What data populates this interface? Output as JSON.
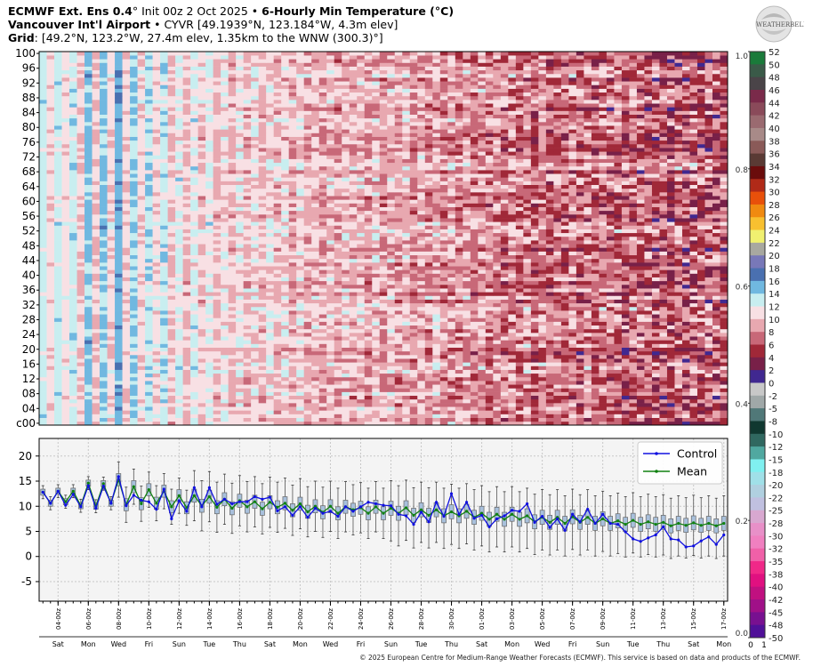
{
  "header": {
    "line1_bold_a": "ECMWF Ext. Ens 0.4",
    "line1_deg": "°",
    "line1_normal": " Init 00z 2 Oct 2025 • ",
    "line1_bold_b": "6-Hourly Min Temperature (°C)",
    "line2_bold": "Vancouver Int'l Airport",
    "line2_normal": " • CYVR [49.1939°N, 123.184°W, 4.3m elev]",
    "line3_bold": "Grid",
    "line3_normal": ": [49.2°N, 123.2°W, 27.4m elev, 1.35km to the WNW (300.3)°]"
  },
  "logo": {
    "text": "WEATHERBELL"
  },
  "footer": {
    "copyright": "© 2025 European Centre for Medium-Range Weather Forecasts (ECMWF). This service is based on data and products of the ECMWF."
  },
  "chart_data": [
    {
      "type": "heatmap",
      "title": "",
      "ylabel_ticks": [
        "c00",
        "04",
        "08",
        "12",
        "16",
        "20",
        "24",
        "28",
        "32",
        "36",
        "40",
        "44",
        "48",
        "52",
        "56",
        "60",
        "64",
        "68",
        "72",
        "76",
        "80",
        "84",
        "88",
        "92",
        "96",
        "100"
      ],
      "members": 101,
      "x_start": "2025-10-03 00z",
      "x_step_hours": 12,
      "colorbar": {
        "labels": [
          "52",
          "50",
          "48",
          "46",
          "44",
          "42",
          "40",
          "38",
          "36",
          "34",
          "32",
          "30",
          "28",
          "26",
          "24",
          "22",
          "20",
          "18",
          "16",
          "14",
          "12",
          "10",
          "8",
          "6",
          "4",
          "2",
          "0",
          "-2",
          "-5",
          "-8",
          "-10",
          "-12",
          "-15",
          "-18",
          "-20",
          "-22",
          "-25",
          "-28",
          "-30",
          "-32",
          "-35",
          "-38",
          "-40",
          "-42",
          "-45",
          "-48",
          "-50"
        ],
        "colors": [
          "#1a7a3a",
          "#3a5a48",
          "#4a4448",
          "#7a2a4a",
          "#8a4a5a",
          "#9a6a70",
          "#a88a88",
          "#8a5a58",
          "#5a3a34",
          "#6a0c0c",
          "#b02a18",
          "#e8500a",
          "#f08a10",
          "#f8c030",
          "#f0f070",
          "#a8a8a0",
          "#7878b8",
          "#4a70b0",
          "#70b8e0",
          "#c8eef0",
          "#f8e0e4",
          "#e8a8b0",
          "#c86878",
          "#a02838",
          "#782048",
          "#402890",
          "#c8c8c8",
          "#a0a8a8",
          "#507878",
          "#103830",
          "#306860",
          "#50a8a0",
          "#80f0f0",
          "#a0e0e8",
          "#b0d0e0",
          "#c0c0e0",
          "#d8a8d0",
          "#e890c8",
          "#f080c0",
          "#f060a8",
          "#f02888",
          "#e01080",
          "#c01080",
          "#a01088",
          "#781090",
          "#501098",
          "#3a0a90"
        ],
        "secondary_labels": [
          "1.0",
          "0.8",
          "0.6",
          "0.4",
          "0.2",
          "0.0"
        ],
        "bottom_labels": [
          "0",
          "1"
        ]
      }
    },
    {
      "type": "line",
      "title": "",
      "ylim": [
        -8.9,
        23.5
      ],
      "yticks": [
        20,
        15,
        10,
        5,
        0,
        -5
      ],
      "grid": true,
      "legend": "top-right",
      "x_start": "2025-10-03 00z",
      "x_step_hours": 12,
      "x_tick_labels": [
        "04-00z",
        "06-00z",
        "08-00z",
        "10-00z",
        "12-00z",
        "14-00z",
        "16-00z",
        "18-00z",
        "20-00z",
        "22-00z",
        "24-00z",
        "26-00z",
        "28-00z",
        "30-00z",
        "01-00z",
        "03-00z",
        "05-00z",
        "07-00z",
        "09-00z",
        "11-00z",
        "13-00z",
        "15-00z",
        "17-00z"
      ],
      "weekday_labels": [
        "Sat",
        "Mon",
        "Wed",
        "Fri",
        "Sun",
        "Tue",
        "Thu",
        "Sat",
        "Mon",
        "Wed",
        "Fri",
        "Sun",
        "Tue",
        "Thu",
        "Sat",
        "Mon",
        "Wed",
        "Fri",
        "Sun",
        "Tue",
        "Thu",
        "Sat",
        "Mon"
      ],
      "series": [
        {
          "name": "Control",
          "color": "#1010e0",
          "values": [
            12.8,
            10.6,
            13,
            10.2,
            12.4,
            9.9,
            14.1,
            9.6,
            14,
            10.6,
            15.9,
            10.1,
            12.2,
            11.2,
            10.9,
            9.4,
            13.4,
            7.5,
            11.1,
            9,
            13.7,
            9.9,
            13.7,
            10.4,
            11.4,
            10.5,
            10.9,
            10.9,
            11.9,
            11.4,
            11.8,
            9.1,
            9.9,
            8.2,
            9.9,
            7.8,
            9.6,
            8.6,
            9,
            8,
            9.9,
            9,
            9.9,
            10.8,
            10.5,
            10.2,
            10.1,
            8.4,
            8.1,
            6.4,
            8.8,
            6.9,
            10.8,
            8,
            12.5,
            8.4,
            10.8,
            7.6,
            8.2,
            5.9,
            7.5,
            8.1,
            9.2,
            9,
            10.5,
            6.8,
            8,
            5.8,
            7.5,
            5.2,
            8.4,
            6.9,
            9.4,
            6.6,
            8.4,
            6.6,
            6.4,
            4.9,
            3.5,
            3,
            3.7,
            4.3,
            5.9,
            3.5,
            3.3,
            1.9,
            2.1,
            3.1,
            3.9,
            2.4,
            4.3
          ]
        },
        {
          "name": "Mean",
          "color": "#108010",
          "values": [
            12.8,
            10.6,
            13,
            10.9,
            13,
            10.1,
            14.6,
            10,
            14.5,
            10.6,
            15.3,
            10.3,
            13.9,
            10.5,
            13.3,
            10.6,
            13,
            9.9,
            12.1,
            9.7,
            12.1,
            10.1,
            11.9,
            9.8,
            11.4,
            9.6,
            11.1,
            9.9,
            10.9,
            9.5,
            10.8,
            9.8,
            10.6,
            9.2,
            10.5,
            8.9,
            10,
            8.8,
            10,
            8.6,
            9.9,
            9.3,
            9.7,
            8.6,
            9.9,
            8.6,
            9.6,
            8.6,
            9.7,
            8.2,
            9.3,
            8.2,
            9.3,
            8.1,
            8.9,
            8.1,
            9,
            7.8,
            8.6,
            7.4,
            8.4,
            7.4,
            8.4,
            7.4,
            8.1,
            6.9,
            7.8,
            6.8,
            7.8,
            6.6,
            7.9,
            6.8,
            7.8,
            6.6,
            7.5,
            6.6,
            7.1,
            6.4,
            7.2,
            6.4,
            6.9,
            6.4,
            6.8,
            6.1,
            6.6,
            6.2,
            6.7,
            6.2,
            6.6,
            6.1,
            6.6
          ]
        }
      ],
      "boxes": {
        "color": "#a8c0dc",
        "q1": [
          12.2,
          10,
          12.4,
          10.3,
          12.4,
          9.5,
          14,
          9.4,
          13.9,
          10,
          14.1,
          9.1,
          12.7,
          9.3,
          12.1,
          9.4,
          11.8,
          8.7,
          10.9,
          8.5,
          10.8,
          8.8,
          10.6,
          8.5,
          10.1,
          8.3,
          9.8,
          8.6,
          9.6,
          8.2,
          9.5,
          8.5,
          9.3,
          7.9,
          9.2,
          7.6,
          8.7,
          7.5,
          8.7,
          7.3,
          8.6,
          8,
          8.4,
          7.3,
          8.6,
          7.3,
          8.2,
          7.2,
          8.3,
          6.8,
          7.9,
          6.8,
          7.9,
          6.7,
          7.5,
          6.7,
          7.6,
          6.4,
          7.2,
          6,
          7,
          6,
          7,
          6,
          6.7,
          5.5,
          6.4,
          5.4,
          6.4,
          5.2,
          6.5,
          5.4,
          6.4,
          5.2,
          6.1,
          5.2,
          5.7,
          5,
          5.8,
          5,
          5.5,
          5,
          5.4,
          4.7,
          5.2,
          4.8,
          5.3,
          4.8,
          5.2,
          4.7,
          5.2
        ],
        "q3": [
          13.4,
          11.2,
          13.6,
          11.5,
          13.6,
          10.7,
          15.2,
          10.6,
          15.1,
          11.2,
          16.5,
          11.5,
          15.1,
          11.7,
          14.5,
          11.8,
          14.2,
          11.1,
          13.3,
          10.9,
          13.4,
          11.4,
          13.2,
          11.1,
          12.7,
          10.9,
          12.4,
          11.2,
          12.2,
          10.8,
          12.1,
          11.1,
          11.9,
          10.5,
          11.8,
          10.2,
          11.3,
          10.1,
          11.3,
          9.9,
          11.2,
          10.6,
          11,
          9.9,
          11.2,
          9.9,
          11,
          10,
          11.1,
          9.6,
          10.7,
          9.6,
          10.7,
          9.5,
          10.3,
          9.5,
          10.4,
          9.2,
          10,
          8.8,
          9.8,
          8.8,
          9.8,
          8.8,
          9.5,
          8.3,
          9.2,
          8.2,
          9.2,
          8,
          9.3,
          8.2,
          9.2,
          8,
          8.9,
          8,
          8.5,
          7.8,
          8.6,
          7.8,
          8.3,
          7.8,
          8.2,
          7.5,
          8,
          7.6,
          8.1,
          7.6,
          8,
          7.5,
          8
        ],
        "min": [
          11.5,
          9.3,
          11.7,
          9.6,
          11.7,
          8.8,
          13.3,
          8.7,
          13.2,
          9.3,
          11.8,
          6.8,
          10.4,
          7,
          9.8,
          7.1,
          9.5,
          6.4,
          8.6,
          6.2,
          7.1,
          5.1,
          6.9,
          4.8,
          6.4,
          4.6,
          6.1,
          4.9,
          5.9,
          4.5,
          5.8,
          4.8,
          5.6,
          4.2,
          5.5,
          3.9,
          5,
          3.8,
          5,
          3.6,
          4.9,
          4.3,
          4.7,
          3.6,
          4.9,
          3.6,
          3.1,
          2.1,
          3.2,
          1.7,
          2.8,
          1.7,
          2.8,
          1.6,
          2.4,
          1.6,
          2.5,
          1.3,
          2.1,
          0.9,
          1.9,
          0.9,
          1.9,
          0.9,
          1.6,
          0.4,
          1.3,
          0.3,
          1.3,
          0.1,
          1.4,
          0.3,
          1.3,
          0.1,
          1,
          0.1,
          0.6,
          -0.1,
          0.7,
          -0.1,
          0.4,
          -0.1,
          0.3,
          -0.4,
          0.1,
          -0.3,
          0.2,
          -0.3,
          0.1,
          -0.4,
          0.1
        ],
        "max": [
          14.1,
          11.9,
          14.3,
          12.2,
          14.3,
          11.4,
          15.9,
          11.3,
          15.8,
          11.9,
          18.8,
          13.8,
          17.4,
          14,
          16.8,
          14.1,
          16.5,
          13.4,
          15.6,
          13.2,
          17.1,
          15.1,
          16.9,
          14.8,
          16.4,
          14.6,
          16.1,
          14.9,
          15.9,
          14.5,
          15.8,
          14.8,
          15.6,
          14.2,
          15.5,
          13.9,
          15,
          13.8,
          15,
          13.6,
          14.9,
          14.3,
          14.7,
          13.6,
          14.9,
          13.6,
          15.1,
          14.1,
          15.2,
          13.7,
          14.8,
          13.7,
          14.8,
          13.6,
          14.4,
          13.6,
          14.5,
          13.3,
          14.1,
          12.9,
          13.9,
          12.9,
          13.9,
          12.9,
          13.6,
          12.4,
          13.3,
          12.3,
          13.3,
          12.1,
          13.4,
          12.3,
          13.3,
          12.1,
          13,
          12.1,
          12.6,
          11.9,
          12.7,
          11.9,
          12.4,
          11.9,
          12.3,
          11.6,
          12.1,
          11.7,
          12.2,
          11.7,
          12.1,
          11.6,
          12.1
        ]
      }
    }
  ]
}
